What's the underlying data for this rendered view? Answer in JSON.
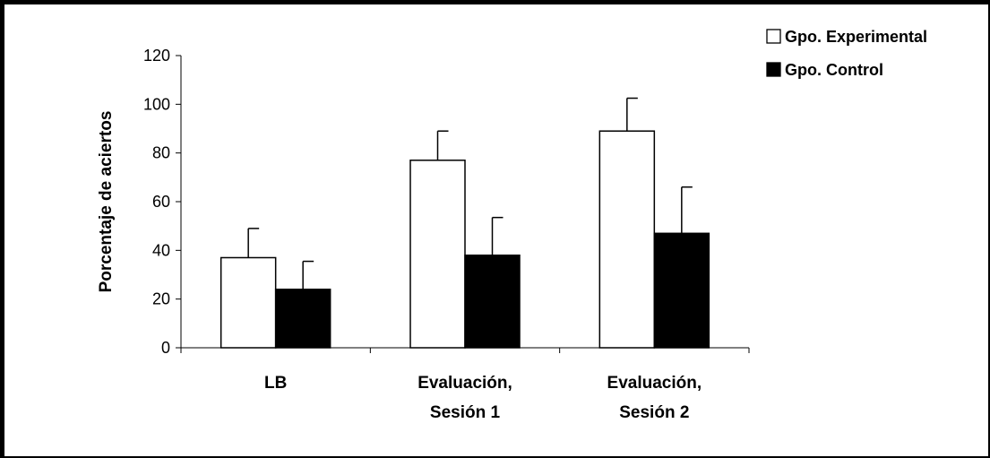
{
  "chart_data": {
    "type": "bar",
    "ylabel": "Porcentaje de aciertos",
    "xlabel": "",
    "ylim": [
      0,
      120
    ],
    "yticks": [
      0,
      20,
      40,
      60,
      80,
      100,
      120
    ],
    "categories": [
      [
        "LB"
      ],
      [
        "Evaluación,",
        "Sesión 1"
      ],
      [
        "Evaluación,",
        "Sesión 2"
      ]
    ],
    "series": [
      {
        "name": "Gpo. Experimental",
        "values": [
          37,
          77,
          89
        ],
        "errors": [
          12,
          12,
          13.5
        ],
        "color": "#ffffff"
      },
      {
        "name": "Gpo. Control",
        "values": [
          24,
          38,
          47
        ],
        "errors": [
          11.5,
          15.5,
          19
        ],
        "color": "#000000"
      }
    ],
    "legend_position": "top-right",
    "grid": false,
    "error_bars": true
  }
}
